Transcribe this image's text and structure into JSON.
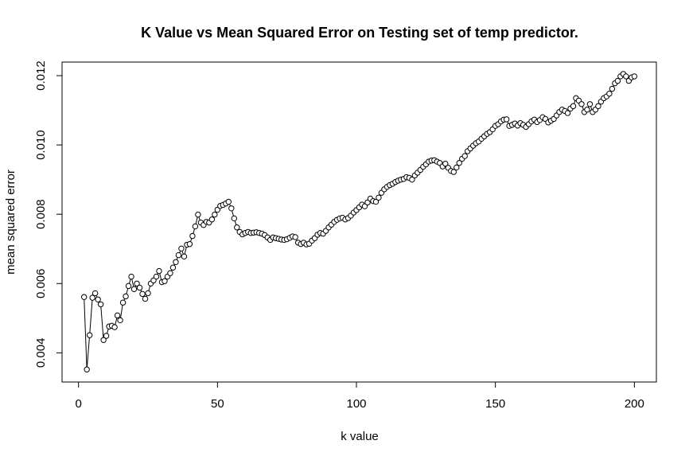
{
  "chart_data": {
    "type": "line",
    "title": "K Value vs Mean Squared Error on Testing set of temp predictor.",
    "x_label": "k value",
    "y_label": "mean squared error",
    "marker": "open-circle",
    "xlim": [
      -5.92,
      207.92
    ],
    "xticks": [
      0,
      50,
      100,
      150,
      200
    ],
    "ylim": [
      0.003158,
      0.012392
    ],
    "yticks": [
      0.004,
      0.006,
      0.008,
      {
        "value": 0.01,
        "label": "0.010"
      },
      0.012
    ],
    "x": [
      2,
      3,
      4,
      5,
      6,
      7,
      8,
      9,
      10,
      11,
      12,
      13,
      14,
      15,
      16,
      17,
      18,
      19,
      20,
      21,
      22,
      23,
      24,
      25,
      26,
      27,
      28,
      29,
      30,
      31,
      32,
      33,
      34,
      35,
      36,
      37,
      38,
      39,
      40,
      41,
      42,
      43,
      44,
      45,
      46,
      47,
      48,
      49,
      50,
      51,
      52,
      53,
      54,
      55,
      56,
      57,
      58,
      59,
      60,
      61,
      62,
      63,
      64,
      65,
      66,
      67,
      68,
      69,
      70,
      71,
      72,
      73,
      74,
      75,
      76,
      77,
      78,
      79,
      80,
      81,
      82,
      83,
      84,
      85,
      86,
      87,
      88,
      89,
      90,
      91,
      92,
      93,
      94,
      95,
      96,
      97,
      98,
      99,
      100,
      101,
      102,
      103,
      104,
      105,
      106,
      107,
      108,
      109,
      110,
      111,
      112,
      113,
      114,
      115,
      116,
      117,
      118,
      119,
      120,
      121,
      122,
      123,
      124,
      125,
      126,
      127,
      128,
      129,
      130,
      131,
      132,
      133,
      134,
      135,
      136,
      137,
      138,
      139,
      140,
      141,
      142,
      143,
      144,
      145,
      146,
      147,
      148,
      149,
      150,
      151,
      152,
      153,
      154,
      155,
      156,
      157,
      158,
      159,
      160,
      161,
      162,
      163,
      164,
      165,
      166,
      167,
      168,
      169,
      170,
      171,
      172,
      173,
      174,
      175,
      176,
      177,
      178,
      179,
      180,
      181,
      182,
      183,
      184,
      185,
      186,
      187,
      188,
      189,
      190,
      191,
      192,
      193,
      194,
      195,
      196,
      197,
      198,
      199,
      200
    ],
    "series": [
      {
        "color": "#000000",
        "values": [
          0.00561,
          0.00352,
          0.00451,
          0.00559,
          0.00572,
          0.00554,
          0.0054,
          0.00437,
          0.00449,
          0.00476,
          0.00478,
          0.00474,
          0.00508,
          0.00494,
          0.00545,
          0.00563,
          0.00593,
          0.0062,
          0.00584,
          0.006,
          0.00588,
          0.0057,
          0.00556,
          0.00572,
          0.006,
          0.00609,
          0.0062,
          0.00636,
          0.00604,
          0.00607,
          0.0062,
          0.0063,
          0.00646,
          0.00662,
          0.00682,
          0.00701,
          0.00678,
          0.00712,
          0.00714,
          0.00737,
          0.00765,
          0.00799,
          0.00776,
          0.00769,
          0.00778,
          0.00776,
          0.00785,
          0.00799,
          0.00813,
          0.00824,
          0.00827,
          0.00831,
          0.00836,
          0.00817,
          0.00788,
          0.00762,
          0.00749,
          0.00742,
          0.00746,
          0.00749,
          0.00746,
          0.00747,
          0.00748,
          0.00746,
          0.00744,
          0.0074,
          0.00733,
          0.00726,
          0.00733,
          0.00731,
          0.00729,
          0.00727,
          0.00726,
          0.00728,
          0.00732,
          0.00736,
          0.00734,
          0.00718,
          0.00714,
          0.00718,
          0.00713,
          0.00715,
          0.00724,
          0.00731,
          0.00741,
          0.00746,
          0.00744,
          0.00752,
          0.00762,
          0.0077,
          0.00778,
          0.00784,
          0.00788,
          0.0079,
          0.00785,
          0.00789,
          0.00796,
          0.00805,
          0.00812,
          0.0082,
          0.00828,
          0.00823,
          0.00834,
          0.00845,
          0.00838,
          0.00836,
          0.00848,
          0.00862,
          0.00872,
          0.00879,
          0.00884,
          0.00888,
          0.00893,
          0.00897,
          0.009,
          0.00902,
          0.00907,
          0.00905,
          0.009,
          0.00912,
          0.0092,
          0.00928,
          0.00937,
          0.00944,
          0.00952,
          0.00955,
          0.00956,
          0.00952,
          0.00948,
          0.00938,
          0.00946,
          0.00934,
          0.00925,
          0.00922,
          0.00935,
          0.00948,
          0.0096,
          0.00968,
          0.00982,
          0.0099,
          0.00998,
          0.01005,
          0.0101,
          0.01018,
          0.01025,
          0.01032,
          0.01037,
          0.01045,
          0.01055,
          0.0106,
          0.01068,
          0.01073,
          0.01074,
          0.01055,
          0.01058,
          0.01062,
          0.01056,
          0.01063,
          0.01058,
          0.01052,
          0.0106,
          0.01068,
          0.01073,
          0.01066,
          0.01072,
          0.0108,
          0.01075,
          0.01065,
          0.0107,
          0.01075,
          0.01085,
          0.01095,
          0.01102,
          0.01098,
          0.01092,
          0.01105,
          0.01112,
          0.01135,
          0.01128,
          0.01118,
          0.01095,
          0.01102,
          0.01118,
          0.01095,
          0.01102,
          0.01112,
          0.01125,
          0.01135,
          0.0114,
          0.01148,
          0.01162,
          0.01178,
          0.01185,
          0.01198,
          0.01205,
          0.01198,
          0.01185,
          0.01195,
          0.01198
        ]
      }
    ]
  }
}
